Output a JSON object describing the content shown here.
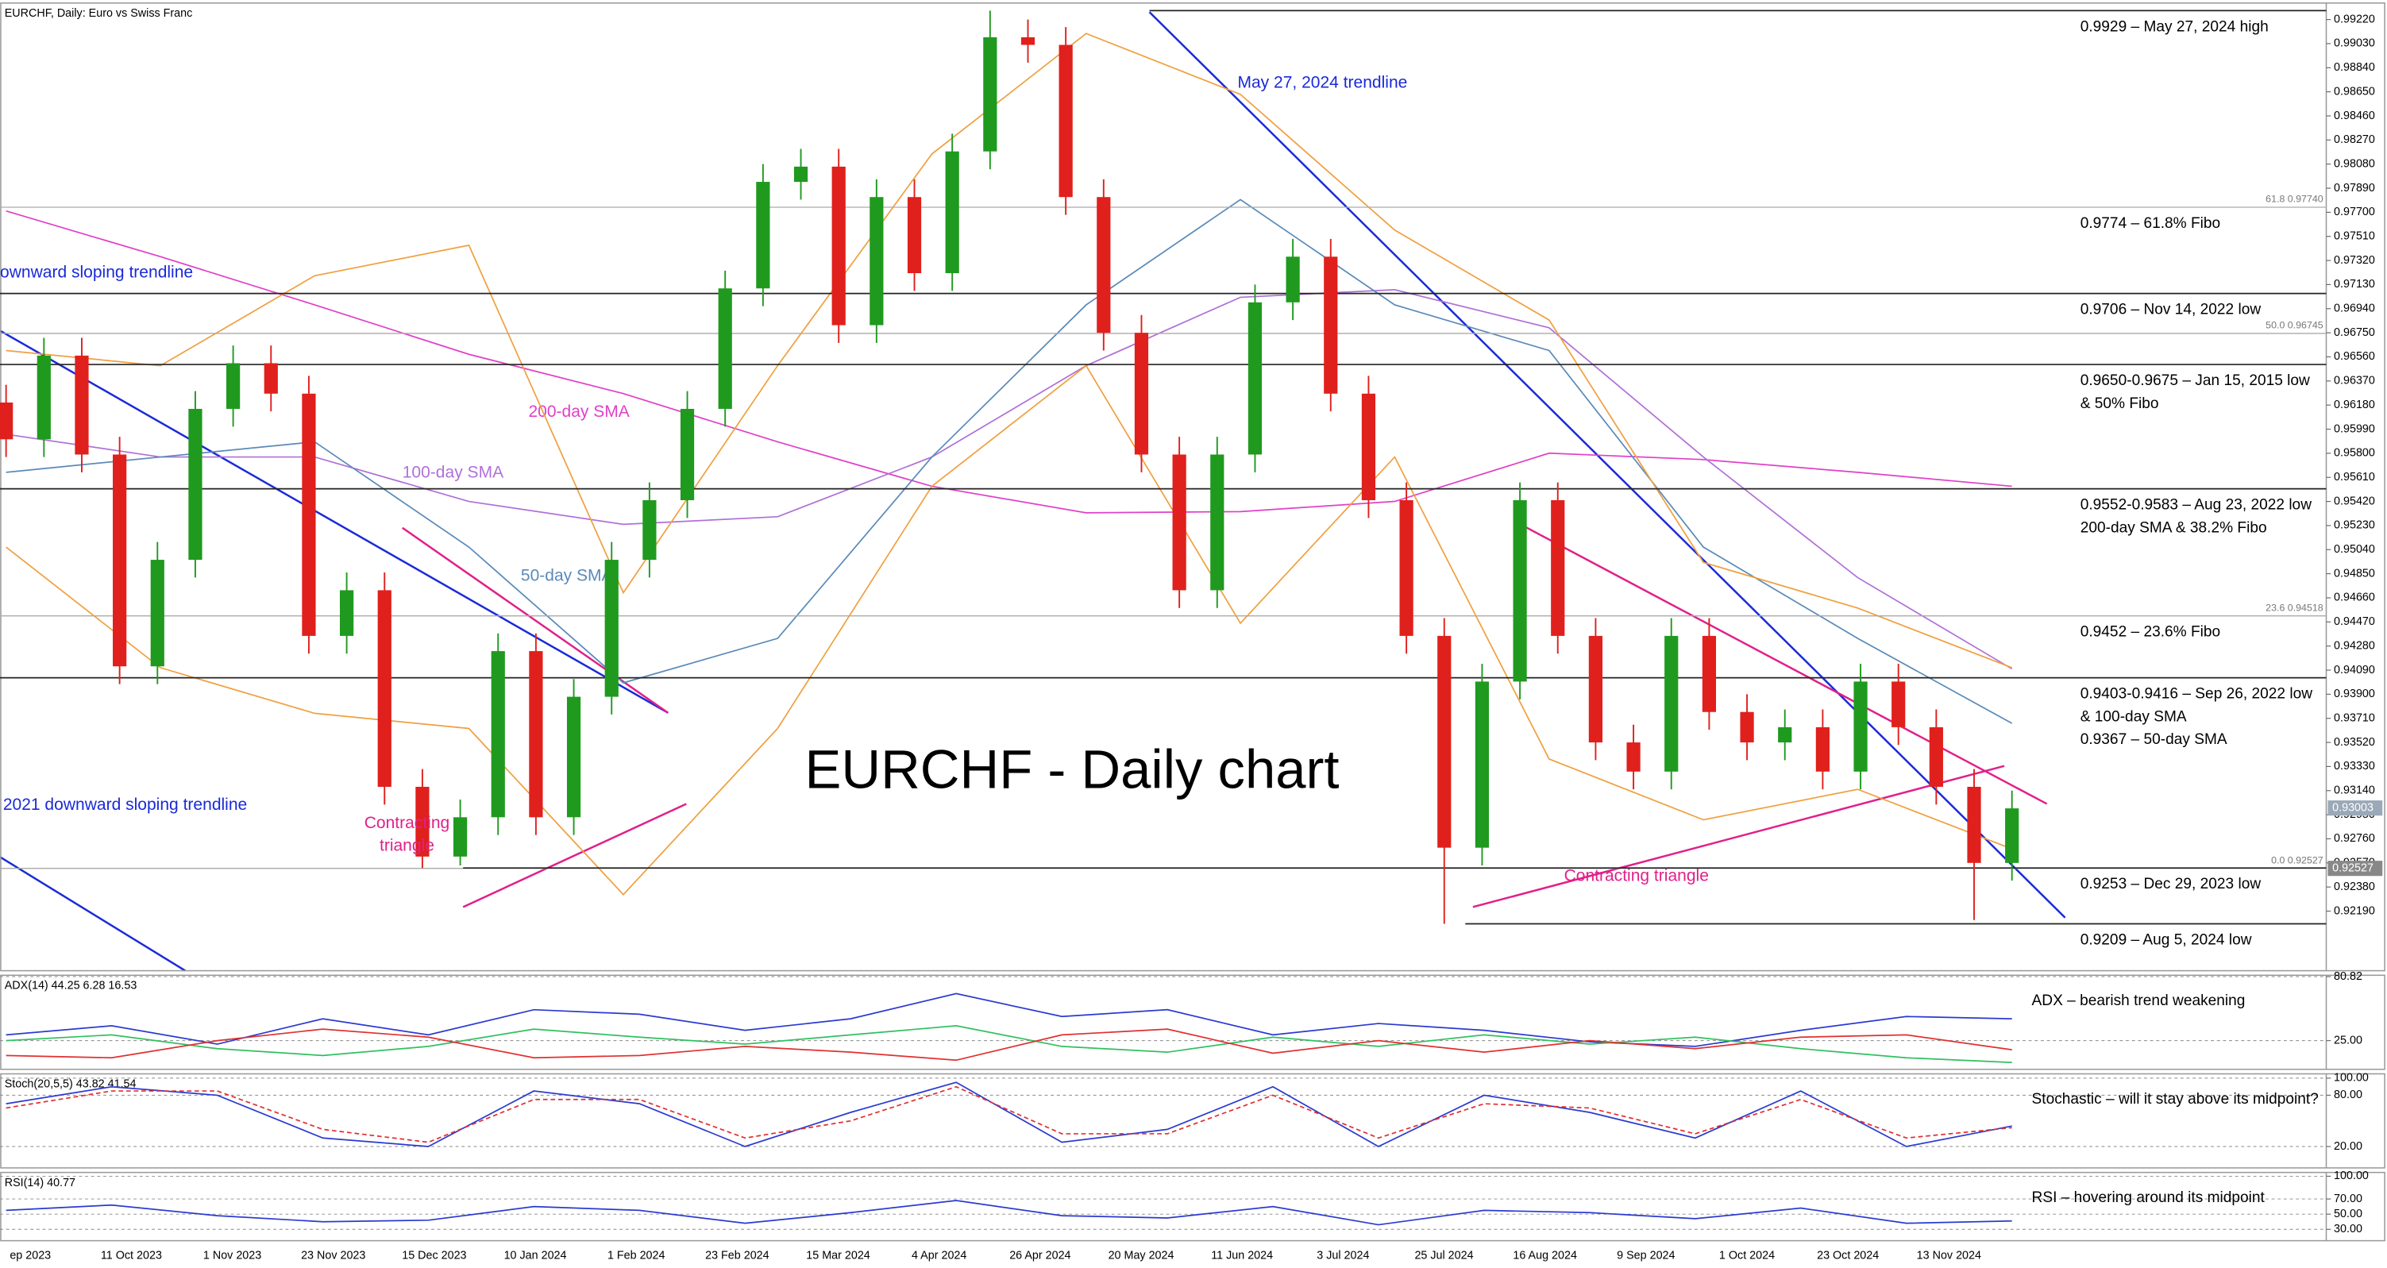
{
  "chart_data": [
    {
      "type": "candlestick",
      "title": "EURCHF, Daily:  Euro vs Swiss Franc",
      "open": [
        0.962,
        0.9591,
        0.9657,
        0.9579,
        0.9412,
        0.9496,
        0.9615,
        0.9651,
        0.9627,
        0.9436,
        0.9472,
        0.9317,
        0.9262,
        0.9293,
        0.9424,
        0.9293,
        0.9388,
        0.9496,
        0.9543,
        0.9615,
        0.971,
        0.9794,
        0.9806,
        0.9681,
        0.9782,
        0.9722,
        0.9818,
        0.9908,
        0.9902,
        0.9782,
        0.9675,
        0.9579,
        0.9472,
        0.9579,
        0.9699,
        0.9735,
        0.9627,
        0.9543,
        0.9436,
        0.9269,
        0.94,
        0.9543,
        0.9436,
        0.9352,
        0.9329,
        0.9436,
        0.9376,
        0.9352,
        0.9364,
        0.9329,
        0.94,
        0.9364,
        0.9317,
        0.9257
      ],
      "high": [
        0.9634,
        0.9671,
        0.9671,
        0.9593,
        0.951,
        0.9629,
        0.9665,
        0.9665,
        0.9641,
        0.9486,
        0.9486,
        0.9331,
        0.9307,
        0.9438,
        0.9438,
        0.9402,
        0.951,
        0.9557,
        0.9629,
        0.9724,
        0.9808,
        0.982,
        0.982,
        0.9796,
        0.9796,
        0.9832,
        0.9929,
        0.9922,
        0.9916,
        0.9796,
        0.9689,
        0.9593,
        0.9593,
        0.9713,
        0.9749,
        0.9749,
        0.9641,
        0.9557,
        0.945,
        0.9414,
        0.9557,
        0.9557,
        0.945,
        0.9366,
        0.945,
        0.945,
        0.939,
        0.9378,
        0.9378,
        0.9414,
        0.9414,
        0.9378,
        0.9331,
        0.9314
      ],
      "low": [
        0.9577,
        0.9577,
        0.9565,
        0.9398,
        0.9398,
        0.9482,
        0.9601,
        0.9613,
        0.9422,
        0.9422,
        0.9303,
        0.9253,
        0.9255,
        0.9279,
        0.9279,
        0.9279,
        0.9374,
        0.9482,
        0.9529,
        0.9601,
        0.9696,
        0.978,
        0.9667,
        0.9667,
        0.9708,
        0.9708,
        0.9804,
        0.9888,
        0.9768,
        0.9661,
        0.9565,
        0.9458,
        0.9458,
        0.9565,
        0.9685,
        0.9613,
        0.9529,
        0.9422,
        0.9209,
        0.9255,
        0.9386,
        0.9422,
        0.9338,
        0.9315,
        0.9315,
        0.9362,
        0.9338,
        0.9338,
        0.9315,
        0.9315,
        0.935,
        0.9303,
        0.9212,
        0.9243
      ],
      "close": [
        0.9591,
        0.9657,
        0.9579,
        0.9412,
        0.9496,
        0.9615,
        0.9651,
        0.9627,
        0.9436,
        0.9472,
        0.9317,
        0.9262,
        0.9293,
        0.9424,
        0.9293,
        0.9388,
        0.9496,
        0.9543,
        0.9615,
        0.971,
        0.9794,
        0.9806,
        0.9681,
        0.9782,
        0.9722,
        0.9818,
        0.9908,
        0.9902,
        0.9782,
        0.9675,
        0.9579,
        0.9472,
        0.9579,
        0.9699,
        0.9735,
        0.9627,
        0.9543,
        0.9436,
        0.9269,
        0.94,
        0.9543,
        0.9436,
        0.9352,
        0.9329,
        0.9436,
        0.9376,
        0.9352,
        0.9364,
        0.9329,
        0.94,
        0.9364,
        0.9317,
        0.9257,
        0.93
      ],
      "up_color": "#1f9a1f",
      "down_color": "#e0201c",
      "series": [
        {
          "name": "200-day SMA",
          "color": "#e040c8",
          "values": [
            0.9771,
            0.9735,
            0.9697,
            0.9658,
            0.9627,
            0.9589,
            0.9554,
            0.9533,
            0.9534,
            0.9542,
            0.958,
            0.9575,
            0.9565,
            0.9554
          ]
        },
        {
          "name": "100-day SMA",
          "color": "#b070d8",
          "values": [
            0.9595,
            0.9577,
            0.9577,
            0.9542,
            0.9524,
            0.953,
            0.9577,
            0.9649,
            0.9703,
            0.9709,
            0.9679,
            0.9577,
            0.9482,
            0.941
          ]
        },
        {
          "name": "50-day SMA",
          "color": "#5a8ab8",
          "values": [
            0.9565,
            0.9577,
            0.9589,
            0.9506,
            0.9399,
            0.9434,
            0.9577,
            0.9697,
            0.978,
            0.9697,
            0.9661,
            0.9506,
            0.9434,
            0.9367
          ]
        },
        {
          "color": "#f0a040",
          "values": [
            0.9661,
            0.9649,
            0.972,
            0.9744,
            0.947,
            0.9649,
            0.9816,
            0.9911,
            0.9863,
            0.9756,
            0.9685,
            0.9494,
            0.9458,
            0.9411
          ]
        },
        {
          "color": "#f0a040",
          "values": [
            0.9506,
            0.9411,
            0.9375,
            0.9363,
            0.9232,
            0.9363,
            0.9554,
            0.9649,
            0.9446,
            0.9577,
            0.9339,
            0.9291,
            0.9315,
            0.9268
          ]
        }
      ],
      "ylim": [
        0.9172,
        0.9935
      ],
      "yticks": [
        {
          "value": 0.9922,
          "label": "0.99220"
        },
        {
          "value": 0.9903,
          "label": "0.99030"
        },
        {
          "value": 0.9884,
          "label": "0.98840"
        },
        {
          "value": 0.9865,
          "label": "0.98650"
        },
        {
          "value": 0.9846,
          "label": "0.98460"
        },
        {
          "value": 0.9827,
          "label": "0.98270"
        },
        {
          "value": 0.9808,
          "label": "0.98080"
        },
        {
          "value": 0.9789,
          "label": "0.97890"
        },
        {
          "value": 0.977,
          "label": "0.97700"
        },
        {
          "value": 0.9751,
          "label": "0.97510"
        },
        {
          "value": 0.9732,
          "label": "0.97320"
        },
        {
          "value": 0.9713,
          "label": "0.97130"
        },
        {
          "value": 0.9694,
          "label": "0.96940"
        },
        {
          "value": 0.9675,
          "label": "0.96750"
        },
        {
          "value": 0.9656,
          "label": "0.96560"
        },
        {
          "value": 0.9637,
          "label": "0.96370"
        },
        {
          "value": 0.9618,
          "label": "0.96180"
        },
        {
          "value": 0.9599,
          "label": "0.95990"
        },
        {
          "value": 0.958,
          "label": "0.95800"
        },
        {
          "value": 0.9561,
          "label": "0.95610"
        },
        {
          "value": 0.9542,
          "label": "0.95420"
        },
        {
          "value": 0.9523,
          "label": "0.95230"
        },
        {
          "value": 0.9504,
          "label": "0.95040"
        },
        {
          "value": 0.9485,
          "label": "0.94850"
        },
        {
          "value": 0.9466,
          "label": "0.94660"
        },
        {
          "value": 0.9447,
          "label": "0.94470"
        },
        {
          "value": 0.9428,
          "label": "0.94280"
        },
        {
          "value": 0.9409,
          "label": "0.94090"
        },
        {
          "value": 0.939,
          "label": "0.93900"
        },
        {
          "value": 0.9371,
          "label": "0.93710"
        },
        {
          "value": 0.9352,
          "label": "0.93520"
        },
        {
          "value": 0.9333,
          "label": "0.93330"
        },
        {
          "value": 0.9314,
          "label": "0.93140"
        },
        {
          "value": 0.9295,
          "label": "0.92950"
        },
        {
          "value": 0.9276,
          "label": "0.92760"
        },
        {
          "value": 0.9257,
          "label": "0.92570"
        },
        {
          "value": 0.9238,
          "label": "0.92380"
        },
        {
          "value": 0.9219,
          "label": "0.92190"
        }
      ],
      "xlabels": [
        "ep 2023",
        "11 Oct 2023",
        "1 Nov 2023",
        "23 Nov 2023",
        "15 Dec 2023",
        "10 Jan 2024",
        "1 Feb 2024",
        "23 Feb 2024",
        "15 Mar 2024",
        "4 Apr 2024",
        "26 Apr 2024",
        "20 May 2024",
        "11 Jun 2024",
        "3 Jul 2024",
        "25 Jul 2024",
        "16 Aug 2024",
        "9 Sep 2024",
        "1 Oct 2024",
        "23 Oct 2024",
        "13 Nov 2024"
      ],
      "levels": [
        {
          "value": 0.9929,
          "label": [
            "0.9929 – May 27, 2024 high"
          ]
        },
        {
          "value": 0.9774,
          "label": [
            "0.9774 – 61.8% Fibo"
          ],
          "line": false
        },
        {
          "value": 0.9706,
          "label": [
            "0.9706 – Nov 14, 2022 low"
          ]
        },
        {
          "value": 0.965,
          "label": [
            "0.9650-0.9675 – Jan 15, 2015 low",
            "& 50% Fibo"
          ]
        },
        {
          "value": 0.9552,
          "label": [
            "0.9552-0.9583 – Aug 23, 2022 low",
            "200-day SMA & 38.2% Fibo"
          ]
        },
        {
          "value": 0.9452,
          "label": [
            "0.9452 – 23.6% Fibo"
          ],
          "line": false
        },
        {
          "value": 0.9403,
          "label": [
            "0.9403-0.9416 – Sep 26, 2022 low",
            "& 100-day SMA"
          ]
        },
        {
          "value": 0.9367,
          "label": [
            "0.9367 – 50-day SMA"
          ],
          "line": false
        },
        {
          "value": 0.9253,
          "label": [
            "0.9253 – Dec 29, 2023 low"
          ]
        },
        {
          "value": 0.9209,
          "label": [
            "0.9209 – Aug 5, 2024 low"
          ]
        }
      ],
      "fibs": [
        {
          "value": 0.9774,
          "label": "61.8 0.97740"
        },
        {
          "value": 0.96745,
          "label": "50.0 0.96745"
        },
        {
          "value": 0.94518,
          "label": "23.6 0.94518"
        },
        {
          "value": 0.92527,
          "label": "0.0 0.92527"
        }
      ],
      "price_tags": [
        0.93003,
        0.92527
      ],
      "annotations": [
        "May 27, 2024 trendline",
        "ownward sloping trendline",
        "EURCHF - Daily chart",
        "2021 downward sloping trendline",
        [
          "Contracting",
          "triangle"
        ],
        "Contracting triangle"
      ]
    },
    {
      "type": "line",
      "title": "ADX(14) 44.25 6.28 16.53",
      "annotation": "ADX – bearish trend weakening",
      "ylim": [
        0,
        82
      ],
      "yticks": [
        80.82,
        {
          "value": 25,
          "label": "25.00"
        }
      ],
      "grid": true,
      "series": [
        {
          "color": "#2a3ad0",
          "values": [
            30,
            38,
            22,
            44,
            30,
            52,
            48,
            34,
            44,
            66,
            46,
            52,
            30,
            40,
            34,
            24,
            20,
            34,
            46,
            44
          ]
        },
        {
          "color": "#30c060",
          "values": [
            25,
            30,
            18,
            12,
            20,
            35,
            28,
            22,
            30,
            38,
            20,
            15,
            28,
            20,
            30,
            22,
            28,
            18,
            10,
            6
          ]
        },
        {
          "color": "#e03030",
          "values": [
            12,
            10,
            25,
            35,
            28,
            10,
            12,
            20,
            15,
            8,
            30,
            35,
            14,
            25,
            15,
            25,
            18,
            28,
            30,
            17
          ]
        }
      ]
    },
    {
      "type": "line",
      "title": "Stoch(20,5,5) 43.82 41.54",
      "annotation": "Stochastic – will it stay above its midpoint?",
      "ylim": [
        -5,
        105
      ],
      "yticks": [
        {
          "value": 100,
          "label": "100.00"
        },
        {
          "value": 80,
          "label": "80.00"
        },
        {
          "value": 20,
          "label": "20.00"
        }
      ],
      "grid": true,
      "series": [
        {
          "color": "#2a3ad0",
          "values": [
            70,
            90,
            80,
            30,
            20,
            85,
            70,
            20,
            60,
            95,
            25,
            40,
            90,
            20,
            80,
            60,
            30,
            85,
            20,
            44
          ]
        },
        {
          "color": "#e03030",
          "dash": true,
          "values": [
            65,
            85,
            85,
            40,
            25,
            75,
            75,
            30,
            50,
            90,
            35,
            35,
            80,
            30,
            70,
            65,
            35,
            75,
            30,
            42
          ]
        }
      ]
    },
    {
      "type": "line",
      "title": "RSI(14) 40.77",
      "annotation": "RSI – hovering around its midpoint",
      "ylim": [
        15,
        105
      ],
      "yticks": [
        {
          "value": 100,
          "label": "100.00"
        },
        {
          "value": 70,
          "label": "70.00"
        },
        {
          "value": 50,
          "label": "50.00"
        },
        {
          "value": 30,
          "label": "30.00"
        }
      ],
      "grid": true,
      "series": [
        {
          "color": "#2a3ad0",
          "values": [
            55,
            62,
            48,
            40,
            42,
            60,
            55,
            38,
            52,
            68,
            48,
            45,
            60,
            36,
            55,
            52,
            44,
            58,
            38,
            41
          ]
        }
      ]
    }
  ]
}
